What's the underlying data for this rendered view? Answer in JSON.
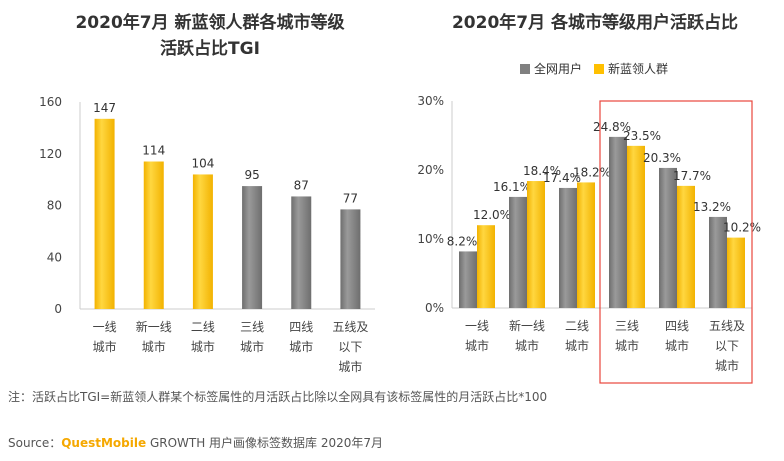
{
  "chart_data": [
    {
      "type": "bar",
      "title_line1": "2020年7月 新蓝领人群各城市等级",
      "title_line2": "活跃占比TGI",
      "categories": [
        [
          "一线",
          "城市"
        ],
        [
          "新一线",
          "城市"
        ],
        [
          "二线",
          "城市"
        ],
        [
          "三线",
          "城市"
        ],
        [
          "四线",
          "城市"
        ],
        [
          "五线及",
          "以下",
          "城市"
        ]
      ],
      "values": [
        147,
        114,
        104,
        95,
        87,
        77
      ],
      "value_labels": [
        "147",
        "114",
        "104",
        "95",
        "87",
        "77"
      ],
      "colors": [
        "#ffc000",
        "#ffc000",
        "#ffc000",
        "#808080",
        "#808080",
        "#808080"
      ],
      "ylim": [
        0,
        160
      ],
      "yticks": [
        0,
        40,
        80,
        120,
        160
      ],
      "ytick_labels": [
        "0",
        "40",
        "80",
        "120",
        "160"
      ]
    },
    {
      "type": "bar",
      "title": "2020年7月 各城市等级用户活跃占比",
      "categories": [
        [
          "一线",
          "城市"
        ],
        [
          "新一线",
          "城市"
        ],
        [
          "二线",
          "城市"
        ],
        [
          "三线",
          "城市"
        ],
        [
          "四线",
          "城市"
        ],
        [
          "五线及",
          "以下",
          "城市"
        ]
      ],
      "series": [
        {
          "name": "全网用户",
          "color": "#808080",
          "values": [
            8.2,
            16.1,
            17.4,
            24.8,
            20.3,
            13.2
          ],
          "labels": [
            "8.2%",
            "16.1%",
            "17.4%",
            "24.8%",
            "20.3%",
            "13.2%"
          ]
        },
        {
          "name": "新蓝领人群",
          "color": "#ffc000",
          "values": [
            12.0,
            18.4,
            18.2,
            23.5,
            17.7,
            10.2
          ],
          "labels": [
            "12.0%",
            "18.4%",
            "18.2%",
            "23.5%",
            "17.7%",
            "10.2%"
          ]
        }
      ],
      "ylim": [
        0,
        30
      ],
      "yticks": [
        0,
        10,
        20,
        30
      ],
      "ytick_labels": [
        "0%",
        "10%",
        "20%",
        "30%"
      ],
      "highlight_color": "#e8453c"
    }
  ],
  "note": "注：活跃占比TGI=新蓝领人群某个标签属性的月活跃占比除以全网具有该标签属性的月活跃占比*100",
  "source": {
    "prefix": "Source：",
    "brand": "QuestMobile",
    "suffix": " GROWTH 用户画像标签数据库 2020年7月"
  }
}
